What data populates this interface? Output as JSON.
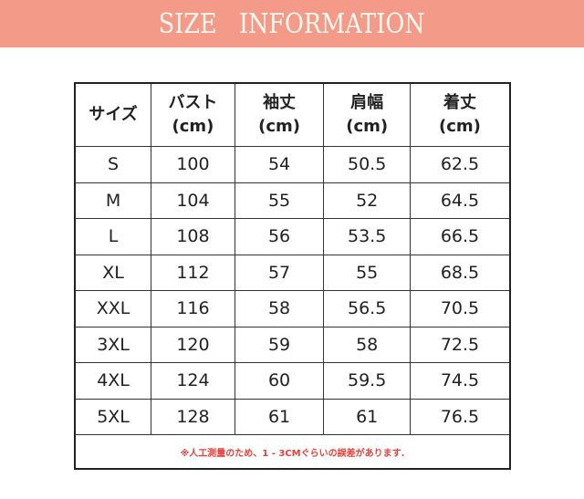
{
  "banner": {
    "title": "SIZE   INFORMATION",
    "color": "#f39a88"
  },
  "table": {
    "headers": [
      [
        "サイズ",
        ""
      ],
      [
        "バスト",
        "(cm)"
      ],
      [
        "袖丈",
        "(cm)"
      ],
      [
        "肩幅",
        "(cm)"
      ],
      [
        "着丈",
        "(cm)"
      ]
    ],
    "rows": [
      [
        "S",
        "100",
        "54",
        "50.5",
        "62.5"
      ],
      [
        "M",
        "104",
        "55",
        "52",
        "64.5"
      ],
      [
        "L",
        "108",
        "56",
        "53.5",
        "66.5"
      ],
      [
        "XL",
        "112",
        "57",
        "55",
        "68.5"
      ],
      [
        "XXL",
        "116",
        "58",
        "56.5",
        "70.5"
      ],
      [
        "3XL",
        "120",
        "59",
        "58",
        "72.5"
      ],
      [
        "4XL",
        "124",
        "60",
        "59.5",
        "74.5"
      ],
      [
        "5XL",
        "128",
        "61",
        "61",
        "76.5"
      ]
    ],
    "note": "※人工測量のため、1 - 3CMぐらいの誤差があります.",
    "note_color": "#e8413a"
  }
}
